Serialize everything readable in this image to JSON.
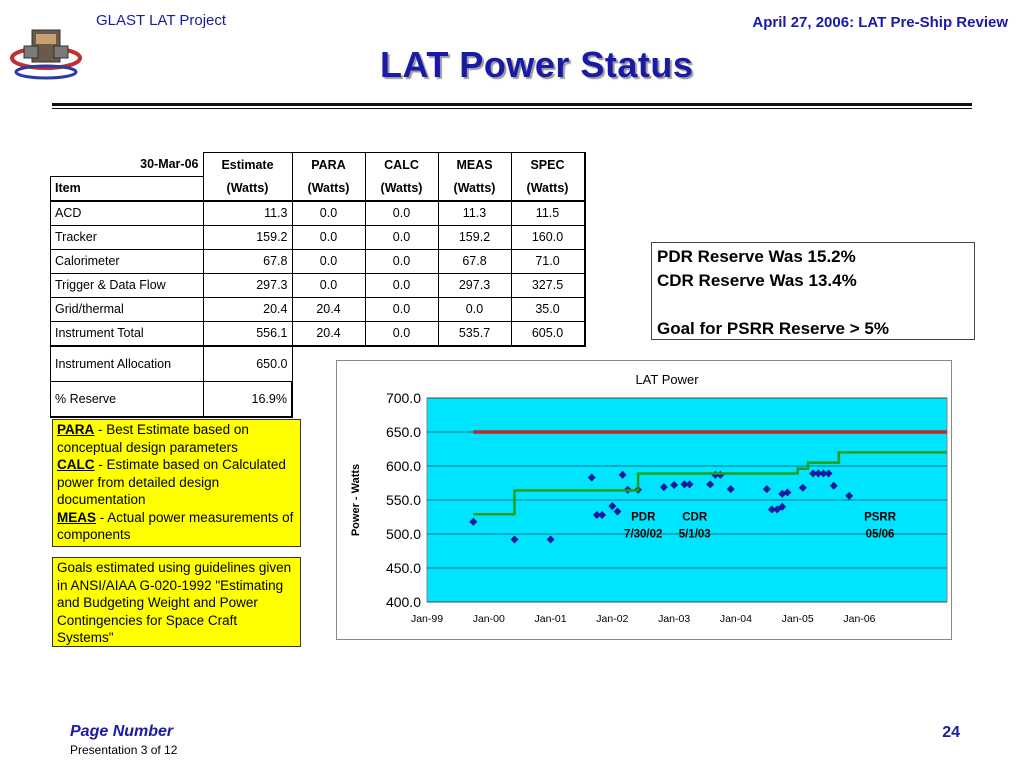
{
  "header": {
    "project": "GLAST LAT Project",
    "review": "April 27, 2006: LAT Pre-Ship Review",
    "title": "LAT Power Status"
  },
  "table": {
    "date": "30-Mar-06",
    "item_header": "Item",
    "columns": [
      {
        "name": "Estimate",
        "unit": "(Watts)"
      },
      {
        "name": "PARA",
        "unit": "(Watts)"
      },
      {
        "name": "CALC",
        "unit": "(Watts)"
      },
      {
        "name": "MEAS",
        "unit": "(Watts)"
      },
      {
        "name": "SPEC",
        "unit": "(Watts)"
      }
    ],
    "rows": [
      {
        "item": "ACD",
        "estimate": "11.3",
        "para": "0.0",
        "calc": "0.0",
        "meas": "11.3",
        "spec": "11.5"
      },
      {
        "item": "Tracker",
        "estimate": "159.2",
        "para": "0.0",
        "calc": "0.0",
        "meas": "159.2",
        "spec": "160.0"
      },
      {
        "item": "Calorimeter",
        "estimate": "67.8",
        "para": "0.0",
        "calc": "0.0",
        "meas": "67.8",
        "spec": "71.0"
      },
      {
        "item": "Trigger & Data Flow",
        "estimate": "297.3",
        "para": "0.0",
        "calc": "0.0",
        "meas": "297.3",
        "spec": "327.5"
      },
      {
        "item": "Grid/thermal",
        "estimate": "20.4",
        "para": "20.4",
        "calc": "0.0",
        "meas": "0.0",
        "spec": "35.0"
      },
      {
        "item": "Instrument Total",
        "estimate": "556.1",
        "para": "20.4",
        "calc": "0.0",
        "meas": "535.7",
        "spec": "605.0"
      }
    ],
    "allocation_label": "Instrument Allocation",
    "allocation_value": "650.0",
    "reserve_label": "% Reserve",
    "reserve_value": "16.9%"
  },
  "reserve_box": {
    "line1": "PDR  Reserve Was 15.2%",
    "line2": "CDR  Reserve Was 13.4%",
    "line3": "Goal for PSRR  Reserve >  5%"
  },
  "notes": {
    "para_term": "PARA",
    "para_text": " - Best Estimate based on conceptual design parameters",
    "calc_term": "CALC",
    "calc_text": " - Estimate based on Calculated power from detailed design documentation",
    "meas_term": "MEAS",
    "meas_text": " - Actual power measurements of components",
    "guidelines": "Goals estimated using guidelines given in ANSI/AIAA G-020-1992 \"Estimating and Budgeting Weight and Power Contingencies for Space Craft Systems\""
  },
  "chart_data": {
    "type": "scatter",
    "title": "LAT Power",
    "ylabel": "Power - Watts",
    "xlabel": "",
    "ylim": [
      400,
      700
    ],
    "yticks": [
      "400.0",
      "450.0",
      "500.0",
      "550.0",
      "600.0",
      "650.0",
      "700.0"
    ],
    "xticks": [
      "Jan-99",
      "Jan-00",
      "Jan-01",
      "Jan-02",
      "Jan-03",
      "Jan-04",
      "Jan-05",
      "Jan-06"
    ],
    "xlim": [
      "Jan-99",
      "Jun-07"
    ],
    "plot_background": "#00e5ff",
    "series": [
      {
        "kind": "points",
        "color": "#1a1a9e",
        "points": [
          [
            "Oct-99",
            518
          ],
          [
            "Jun-00",
            492
          ],
          [
            "Jan-01",
            492
          ],
          [
            "Sep-01",
            583
          ],
          [
            "Oct-01",
            528
          ],
          [
            "Nov-01",
            528
          ],
          [
            "Jan-02",
            541
          ],
          [
            "Feb-02",
            533
          ],
          [
            "Mar-02",
            587
          ],
          [
            "Apr-02",
            565
          ],
          [
            "Jun-02",
            565
          ],
          [
            "Nov-02",
            569
          ],
          [
            "Jan-03",
            572
          ],
          [
            "Mar-03",
            573
          ],
          [
            "Apr-03",
            573
          ],
          [
            "Aug-03",
            573
          ],
          [
            "Sep-03",
            587
          ],
          [
            "Oct-03",
            587
          ],
          [
            "Dec-03",
            566
          ],
          [
            "Jul-04",
            566
          ],
          [
            "Aug-04",
            536
          ],
          [
            "Sep-04",
            536
          ],
          [
            "Oct-04",
            540
          ],
          [
            "Oct-04",
            559
          ],
          [
            "Nov-04",
            561
          ],
          [
            "Feb-05",
            568
          ],
          [
            "Apr-05",
            589
          ],
          [
            "May-05",
            589
          ],
          [
            "Jun-05",
            589
          ],
          [
            "Jul-05",
            589
          ],
          [
            "Aug-05",
            571
          ],
          [
            "Nov-05",
            556
          ]
        ]
      },
      {
        "kind": "step",
        "color": "#1fa01f",
        "points": [
          [
            "Oct-99",
            529
          ],
          [
            "Jun-00",
            529
          ],
          [
            "Jun-00",
            564
          ],
          [
            "Jun-02",
            564
          ],
          [
            "Jun-02",
            589
          ],
          [
            "Jan-05",
            589
          ],
          [
            "Jan-05",
            596
          ],
          [
            "Mar-05",
            596
          ],
          [
            "Mar-05",
            605
          ],
          [
            "Sep-05",
            605
          ],
          [
            "Sep-05",
            620
          ],
          [
            "Jun-07",
            620
          ]
        ]
      },
      {
        "kind": "line",
        "color": "#c0272d",
        "points": [
          [
            "Oct-99",
            650
          ],
          [
            "Jun-07",
            650
          ]
        ]
      }
    ],
    "annotations": [
      {
        "line1": "PDR",
        "line2": "7/30/02"
      },
      {
        "line1": "CDR",
        "line2": "5/1/03"
      },
      {
        "line1": "PSRR",
        "line2": "05/06"
      }
    ]
  },
  "footer": {
    "page_label": "Page Number",
    "presentation": "Presentation 3 of 12",
    "page_number": "24"
  }
}
